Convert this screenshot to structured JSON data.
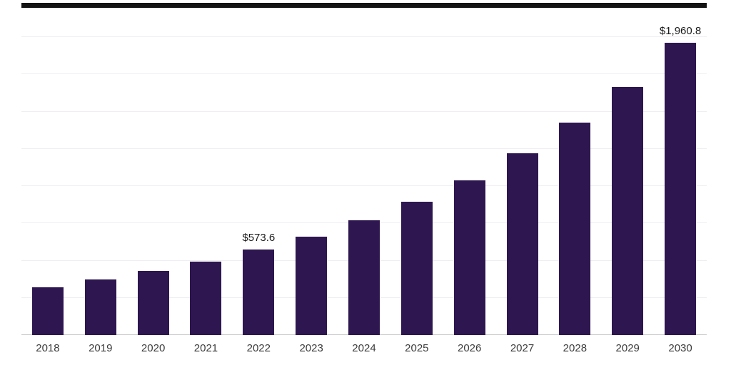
{
  "chart_data": {
    "type": "bar",
    "title": "",
    "xlabel": "",
    "ylabel": "",
    "categories": [
      "2018",
      "2019",
      "2020",
      "2021",
      "2022",
      "2023",
      "2024",
      "2025",
      "2026",
      "2027",
      "2028",
      "2029",
      "2030"
    ],
    "values": [
      320,
      372,
      430,
      492,
      573.6,
      660,
      770,
      894,
      1037,
      1219,
      1424,
      1663,
      1960.8
    ],
    "data_labels": [
      "",
      "",
      "",
      "",
      "$573.6",
      "",
      "",
      "",
      "",
      "",
      "",
      "",
      "$1,960.8"
    ],
    "ylim": [
      0,
      2000
    ],
    "gridline_interval": 250,
    "grid": true,
    "legend_position": "none"
  },
  "colors": {
    "bar": "#2e1650",
    "grid": "#f0eef3",
    "axis": "#c9c9c9",
    "data_label": "#1a1a1a",
    "tick_label": "#3c3c3c",
    "top_strip": "#141414",
    "background": "#ffffff"
  }
}
